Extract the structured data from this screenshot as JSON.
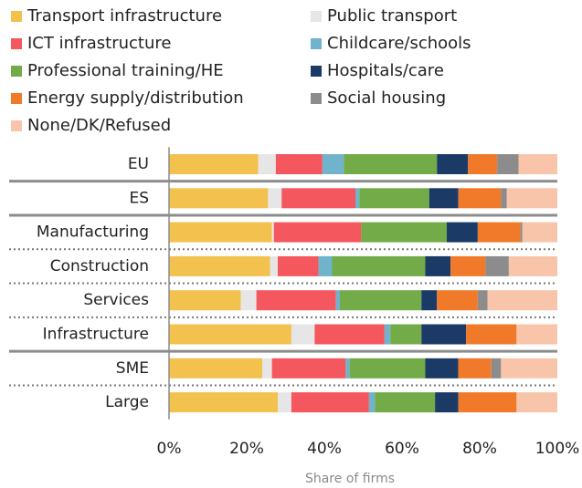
{
  "chart_data": {
    "type": "stacked_barh",
    "xlabel": "Share of firms",
    "categories": [
      "EU",
      "ES",
      "Manufacturing",
      "Construction",
      "Services",
      "Infrastructure",
      "SME",
      "Large"
    ],
    "series": [
      {
        "name": "Transport infrastructure",
        "color": "#f2c14e",
        "values": [
          23,
          25.5,
          26.5,
          26,
          18.5,
          31.5,
          24,
          28
        ]
      },
      {
        "name": "Public transport",
        "color": "#e6e6e6",
        "values": [
          4.5,
          3.5,
          0.5,
          2,
          4,
          6,
          2.5,
          3.5
        ]
      },
      {
        "name": "ICT infrastructure",
        "color": "#f4575e",
        "values": [
          12,
          19,
          22.5,
          10.5,
          20.5,
          18,
          19,
          20
        ]
      },
      {
        "name": "Childcare/schools",
        "color": "#6fb3cc",
        "values": [
          5.5,
          1,
          0,
          3.5,
          1,
          1.5,
          1,
          1.5
        ]
      },
      {
        "name": "Professional training/HE",
        "color": "#72ab48",
        "values": [
          24,
          18,
          22,
          24,
          21,
          8,
          19.5,
          15.5
        ]
      },
      {
        "name": "Hospitals/care",
        "color": "#1b3a66",
        "values": [
          8,
          7.5,
          8,
          6.5,
          4,
          11.5,
          8.5,
          6
        ]
      },
      {
        "name": "Energy supply/distribution",
        "color": "#f07a2a",
        "values": [
          7.5,
          11,
          11,
          9,
          10.5,
          13,
          8.5,
          15
        ]
      },
      {
        "name": "Social housing",
        "color": "#8c8c8c",
        "values": [
          5.5,
          1.5,
          0.5,
          6,
          2.5,
          0,
          2.5,
          0
        ]
      },
      {
        "name": "None/DK/Refused",
        "color": "#f8c5aa",
        "values": [
          10,
          13,
          9,
          12.5,
          18,
          10.5,
          14.5,
          10.5
        ]
      }
    ],
    "xlim": [
      0,
      100
    ],
    "xticks": [
      {
        "value": 0,
        "label": "0%"
      },
      {
        "value": 20,
        "label": "20%"
      },
      {
        "value": 40,
        "label": "40%"
      },
      {
        "value": 60,
        "label": "60%"
      },
      {
        "value": 80,
        "label": "80%"
      },
      {
        "value": 100,
        "label": "100%"
      }
    ]
  }
}
